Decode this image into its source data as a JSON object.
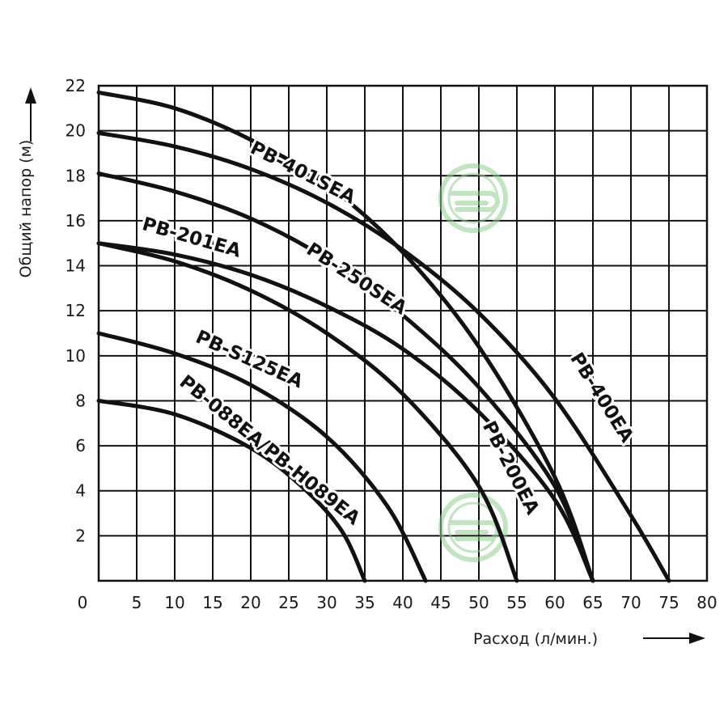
{
  "chart_data": {
    "type": "line",
    "title": "",
    "xlabel": "Расход (л/мин.)",
    "ylabel": "Общий напор (м)",
    "xlim": [
      0,
      80
    ],
    "ylim": [
      0,
      22
    ],
    "x_ticks": [
      0,
      5,
      10,
      15,
      20,
      25,
      30,
      35,
      40,
      45,
      50,
      55,
      60,
      65,
      70,
      75,
      80
    ],
    "y_ticks": [
      2,
      4,
      6,
      8,
      10,
      12,
      14,
      16,
      18,
      20,
      22
    ],
    "x_tick_labels": [
      "0",
      "5",
      "10",
      "15",
      "20",
      "25",
      "30",
      "35",
      "40",
      "45",
      "50",
      "55",
      "60",
      "65",
      "70",
      "75",
      "80"
    ],
    "y_tick_labels": [
      "2",
      "4",
      "6",
      "8",
      "10",
      "12",
      "14",
      "16",
      "18",
      "20",
      "22"
    ],
    "grid": true,
    "series": [
      {
        "name": "PB-401SEA",
        "x": [
          0,
          10,
          20,
          30,
          40,
          50,
          60,
          65
        ],
        "y": [
          21.7,
          21,
          19.6,
          17.6,
          14.6,
          10.4,
          4.6,
          0
        ]
      },
      {
        "name": "PB-400EA",
        "x": [
          0,
          10,
          20,
          30,
          40,
          50,
          60,
          70,
          75
        ],
        "y": [
          19.9,
          19.3,
          18.3,
          16.8,
          14.7,
          11.9,
          8.1,
          2.9,
          0
        ]
      },
      {
        "name": "PB-250SEA",
        "x": [
          0,
          10,
          20,
          30,
          40,
          50,
          60,
          65
        ],
        "y": [
          18.1,
          17.3,
          16.1,
          14.3,
          11.8,
          8.6,
          4.2,
          0
        ]
      },
      {
        "name": "PB-201EA",
        "x": [
          0,
          10,
          20,
          30,
          40,
          50,
          55
        ],
        "y": [
          15,
          14.2,
          12.9,
          11,
          8.3,
          4.2,
          0
        ]
      },
      {
        "name": "PB-200EA",
        "x": [
          0,
          10,
          20,
          30,
          40,
          50,
          60,
          65
        ],
        "y": [
          15,
          14.5,
          13.6,
          12.2,
          10.3,
          7.5,
          3.6,
          0
        ]
      },
      {
        "name": "PB-S125EA",
        "x": [
          0,
          10,
          20,
          30,
          38,
          43
        ],
        "y": [
          11,
          10.1,
          8.7,
          6.4,
          3.3,
          0
        ]
      },
      {
        "name": "PB-088EA/PB-H089EA",
        "x": [
          0,
          10,
          20,
          27,
          32,
          35
        ],
        "y": [
          8,
          7.4,
          5.9,
          4.1,
          2.2,
          0
        ]
      }
    ],
    "labels": [
      {
        "text": "PB-401SEA",
        "angle": 27
      },
      {
        "text": "PB-400EA",
        "angle": 58
      },
      {
        "text": "PB-250SEA",
        "angle": 33
      },
      {
        "text": "PB-201EA",
        "angle": 16
      },
      {
        "text": "PB-200EA",
        "angle": 63
      },
      {
        "text": "PB-S125EA",
        "angle": 24
      },
      {
        "text": "PB-088EA/PB-H089EA",
        "angle": 39
      }
    ],
    "colors": {
      "curve": "#111111",
      "grid": "#111111",
      "watermark": "#8fcf8f"
    }
  }
}
